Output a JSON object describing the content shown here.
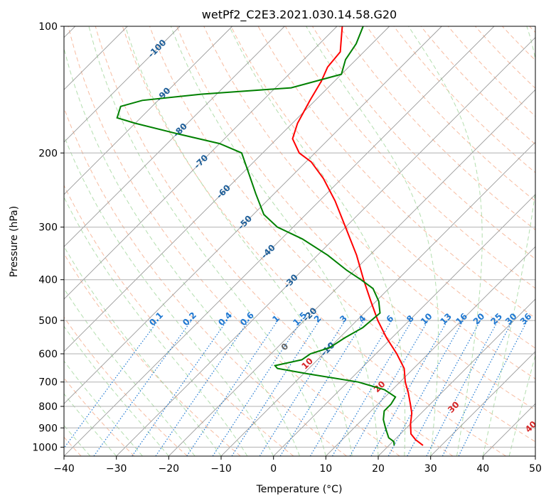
{
  "chart_data": {
    "type": "skew-t",
    "title": "wetPf2_C2E3.2021.030.14.58.G20",
    "xlabel": "Temperature (°C)",
    "ylabel": "Pressure (hPa)",
    "xlim": [
      -40,
      50
    ],
    "ylim": [
      1050,
      100
    ],
    "xticks": [
      -40,
      -30,
      -20,
      -10,
      0,
      10,
      20,
      30,
      40,
      50
    ],
    "yticks": [
      100,
      200,
      300,
      400,
      500,
      600,
      700,
      800,
      900,
      1000
    ],
    "series": [
      {
        "name": "Temperature",
        "color": "#ff0000",
        "points": [
          {
            "p": 990,
            "t": 26.5
          },
          {
            "p": 960,
            "t": 24.0
          },
          {
            "p": 930,
            "t": 22.0
          },
          {
            "p": 880,
            "t": 20.0
          },
          {
            "p": 830,
            "t": 18.2
          },
          {
            "p": 790,
            "t": 16.2
          },
          {
            "p": 740,
            "t": 13.5
          },
          {
            "p": 700,
            "t": 11.0
          },
          {
            "p": 650,
            "t": 8.2
          },
          {
            "p": 600,
            "t": 4.0
          },
          {
            "p": 550,
            "t": -1.0
          },
          {
            "p": 500,
            "t": -6.0
          },
          {
            "p": 450,
            "t": -11.0
          },
          {
            "p": 400,
            "t": -16.5
          },
          {
            "p": 350,
            "t": -22.5
          },
          {
            "p": 300,
            "t": -30.0
          },
          {
            "p": 260,
            "t": -37.0
          },
          {
            "p": 230,
            "t": -43.5
          },
          {
            "p": 210,
            "t": -49.0
          },
          {
            "p": 200,
            "t": -53.0
          },
          {
            "p": 185,
            "t": -57.0
          },
          {
            "p": 170,
            "t": -59.0
          },
          {
            "p": 150,
            "t": -61.0
          },
          {
            "p": 135,
            "t": -62.5
          },
          {
            "p": 125,
            "t": -64.0
          },
          {
            "p": 115,
            "t": -64.5
          },
          {
            "p": 100,
            "t": -69.0
          }
        ]
      },
      {
        "name": "Dewpoint",
        "color": "#008000",
        "points": [
          {
            "p": 990,
            "t": 21.0
          },
          {
            "p": 970,
            "t": 20.2
          },
          {
            "p": 950,
            "t": 18.5
          },
          {
            "p": 900,
            "t": 16.0
          },
          {
            "p": 860,
            "t": 14.0
          },
          {
            "p": 820,
            "t": 12.5
          },
          {
            "p": 790,
            "t": 12.5
          },
          {
            "p": 760,
            "t": 12.0
          },
          {
            "p": 730,
            "t": 8.5
          },
          {
            "p": 700,
            "t": 2.0
          },
          {
            "p": 670,
            "t": -9.0
          },
          {
            "p": 650,
            "t": -16.0
          },
          {
            "p": 640,
            "t": -17.0
          },
          {
            "p": 620,
            "t": -13.0
          },
          {
            "p": 600,
            "t": -12.5
          },
          {
            "p": 580,
            "t": -10.0
          },
          {
            "p": 550,
            "t": -9.0
          },
          {
            "p": 520,
            "t": -7.5
          },
          {
            "p": 480,
            "t": -7.0
          },
          {
            "p": 450,
            "t": -9.5
          },
          {
            "p": 420,
            "t": -13.0
          },
          {
            "p": 400,
            "t": -17.0
          },
          {
            "p": 380,
            "t": -21.5
          },
          {
            "p": 350,
            "t": -28.0
          },
          {
            "p": 320,
            "t": -36.0
          },
          {
            "p": 300,
            "t": -43.0
          },
          {
            "p": 280,
            "t": -48.0
          },
          {
            "p": 250,
            "t": -53.5
          },
          {
            "p": 220,
            "t": -59.5
          },
          {
            "p": 200,
            "t": -64.0
          },
          {
            "p": 190,
            "t": -70.0
          },
          {
            "p": 180,
            "t": -80.0
          },
          {
            "p": 170,
            "t": -90.0
          },
          {
            "p": 165,
            "t": -94.5
          },
          {
            "p": 155,
            "t": -96.0
          },
          {
            "p": 150,
            "t": -93.0
          },
          {
            "p": 145,
            "t": -83.0
          },
          {
            "p": 140,
            "t": -67.0
          },
          {
            "p": 130,
            "t": -60.0
          },
          {
            "p": 120,
            "t": -62.0
          },
          {
            "p": 110,
            "t": -63.0
          },
          {
            "p": 100,
            "t": -65.0
          }
        ]
      }
    ],
    "isotherm_labels": [
      "-100",
      "-90",
      "-80",
      "-70",
      "-60",
      "-50",
      "-40",
      "-30",
      "-20",
      "-10"
    ],
    "mixing_ratio_labels": [
      "0.1",
      "0.2",
      "0.4",
      "0.6",
      "1",
      "1.5",
      "2",
      "3",
      "4",
      "6",
      "8",
      "10",
      "13",
      "16",
      "20",
      "25",
      "30",
      "36"
    ],
    "lapse_label_zero": "0",
    "dry_adiabat_labels": [
      "10",
      "20",
      "30",
      "40"
    ],
    "colors": {
      "temperature": "#ff0000",
      "dewpoint": "#008000",
      "isotherm": "#9a9a9a",
      "isobar": "#b0b0b0",
      "dry_adiabat": "#f4a582",
      "moist_adiabat": "#a6d8a0",
      "mixing_ratio": "#1f78d1",
      "isotherm_label": "#1f5f99",
      "adiabat_label": "#d62728"
    }
  }
}
